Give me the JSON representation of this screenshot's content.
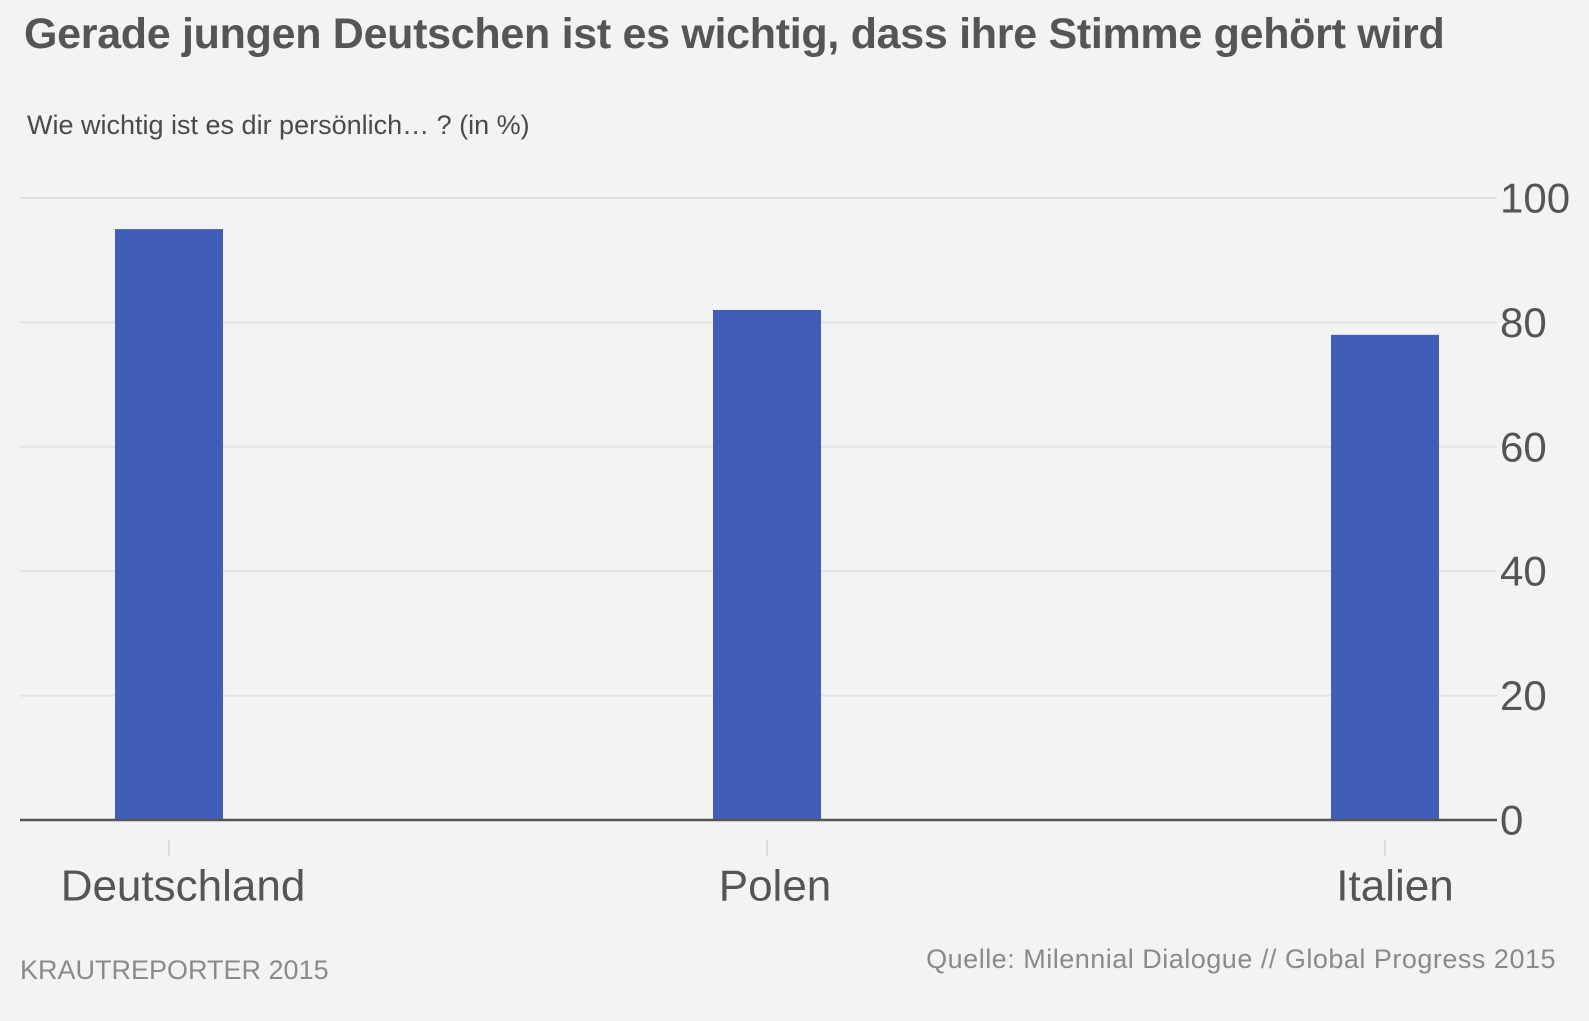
{
  "title": "Gerade jungen Deutschen ist es wichtig, dass ihre Stimme gehört wird",
  "subtitle": "Wie wichtig ist es dir persönlich… ? (in %)",
  "footer": {
    "credit": "KRAUTREPORTER 2015",
    "source": "Quelle: Milennial Dialogue // Global Progress 2015"
  },
  "colors": {
    "bar": "#405eb8",
    "grid": "#e2e2e2",
    "baseline": "#555555",
    "tick_text": "#555555",
    "background": "#f3f3f3"
  },
  "chart_data": {
    "type": "bar",
    "categories": [
      "Deutschland",
      "Polen",
      "Italien"
    ],
    "values": [
      95,
      82,
      78
    ],
    "ylim": [
      0,
      100
    ],
    "yticks": [
      "0",
      "20",
      "40",
      "60",
      "80",
      "100"
    ],
    "y_axis_side": "right",
    "grid": true,
    "legend": "none"
  }
}
